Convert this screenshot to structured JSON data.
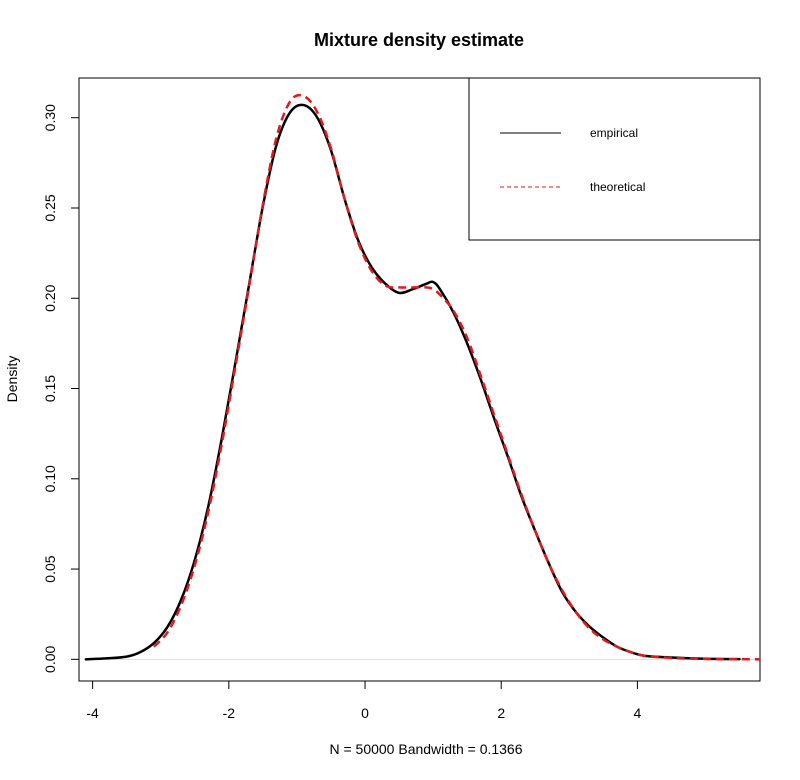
{
  "chart_data": {
    "type": "line",
    "title": "Mixture density estimate",
    "xlabel": "N = 50000   Bandwidth = 0.1366",
    "ylabel": "Density",
    "xlim": [
      -4.2,
      5.8
    ],
    "ylim": [
      -0.012,
      0.322
    ],
    "x_ticks": [
      -4,
      -2,
      0,
      2,
      4
    ],
    "x_tick_labels": [
      "-4",
      "-2",
      "0",
      "2",
      "4"
    ],
    "y_ticks": [
      0.0,
      0.05,
      0.1,
      0.15,
      0.2,
      0.25,
      0.3
    ],
    "y_tick_labels": [
      "0.00",
      "0.05",
      "0.10",
      "0.15",
      "0.20",
      "0.25",
      "0.30"
    ],
    "grid": false,
    "baseline": 0,
    "legend": {
      "position": "top-right",
      "entries": [
        {
          "label": "empirical",
          "color": "#000000",
          "dash": "solid"
        },
        {
          "label": "theoretical",
          "color": "#e31a1c",
          "dash": "dashed"
        }
      ]
    },
    "series": [
      {
        "name": "empirical",
        "color": "#000000",
        "dash": "solid",
        "x": [
          -4.1,
          -3.8,
          -3.5,
          -3.3,
          -3.1,
          -2.9,
          -2.7,
          -2.5,
          -2.3,
          -2.1,
          -1.9,
          -1.7,
          -1.5,
          -1.3,
          -1.1,
          -0.9,
          -0.7,
          -0.5,
          -0.3,
          -0.1,
          0.1,
          0.3,
          0.5,
          0.7,
          0.9,
          1.0,
          1.1,
          1.3,
          1.5,
          1.7,
          1.9,
          2.1,
          2.3,
          2.5,
          2.7,
          2.9,
          3.1,
          3.3,
          3.5,
          3.7,
          3.9,
          4.1,
          4.5,
          5.0,
          5.5
        ],
        "y": [
          0.0,
          0.0005,
          0.0015,
          0.004,
          0.009,
          0.018,
          0.033,
          0.055,
          0.085,
          0.123,
          0.165,
          0.208,
          0.251,
          0.285,
          0.303,
          0.307,
          0.3,
          0.282,
          0.255,
          0.232,
          0.217,
          0.208,
          0.203,
          0.205,
          0.208,
          0.209,
          0.205,
          0.192,
          0.175,
          0.155,
          0.133,
          0.112,
          0.09,
          0.071,
          0.053,
          0.037,
          0.026,
          0.018,
          0.012,
          0.007,
          0.004,
          0.002,
          0.001,
          0.0003,
          0.0001
        ]
      },
      {
        "name": "theoretical",
        "color": "#e31a1c",
        "dash": "dashed",
        "x": [
          -3.1,
          -2.9,
          -2.7,
          -2.5,
          -2.3,
          -2.1,
          -1.9,
          -1.7,
          -1.5,
          -1.3,
          -1.1,
          -0.9,
          -0.7,
          -0.5,
          -0.3,
          -0.1,
          0.1,
          0.3,
          0.5,
          0.7,
          0.9,
          1.0,
          1.1,
          1.3,
          1.5,
          1.7,
          1.9,
          2.1,
          2.3,
          2.5,
          2.7,
          2.9,
          3.1,
          3.3,
          3.5,
          3.7,
          3.9,
          4.1,
          4.5,
          5.0,
          5.5,
          5.8
        ],
        "y": [
          0.007,
          0.015,
          0.03,
          0.052,
          0.082,
          0.12,
          0.163,
          0.207,
          0.252,
          0.289,
          0.309,
          0.312,
          0.303,
          0.283,
          0.255,
          0.231,
          0.215,
          0.207,
          0.206,
          0.206,
          0.206,
          0.205,
          0.202,
          0.193,
          0.178,
          0.157,
          0.135,
          0.113,
          0.091,
          0.071,
          0.053,
          0.038,
          0.026,
          0.017,
          0.011,
          0.007,
          0.004,
          0.002,
          0.0008,
          0.0002,
          0.0001,
          0.0
        ]
      }
    ]
  }
}
